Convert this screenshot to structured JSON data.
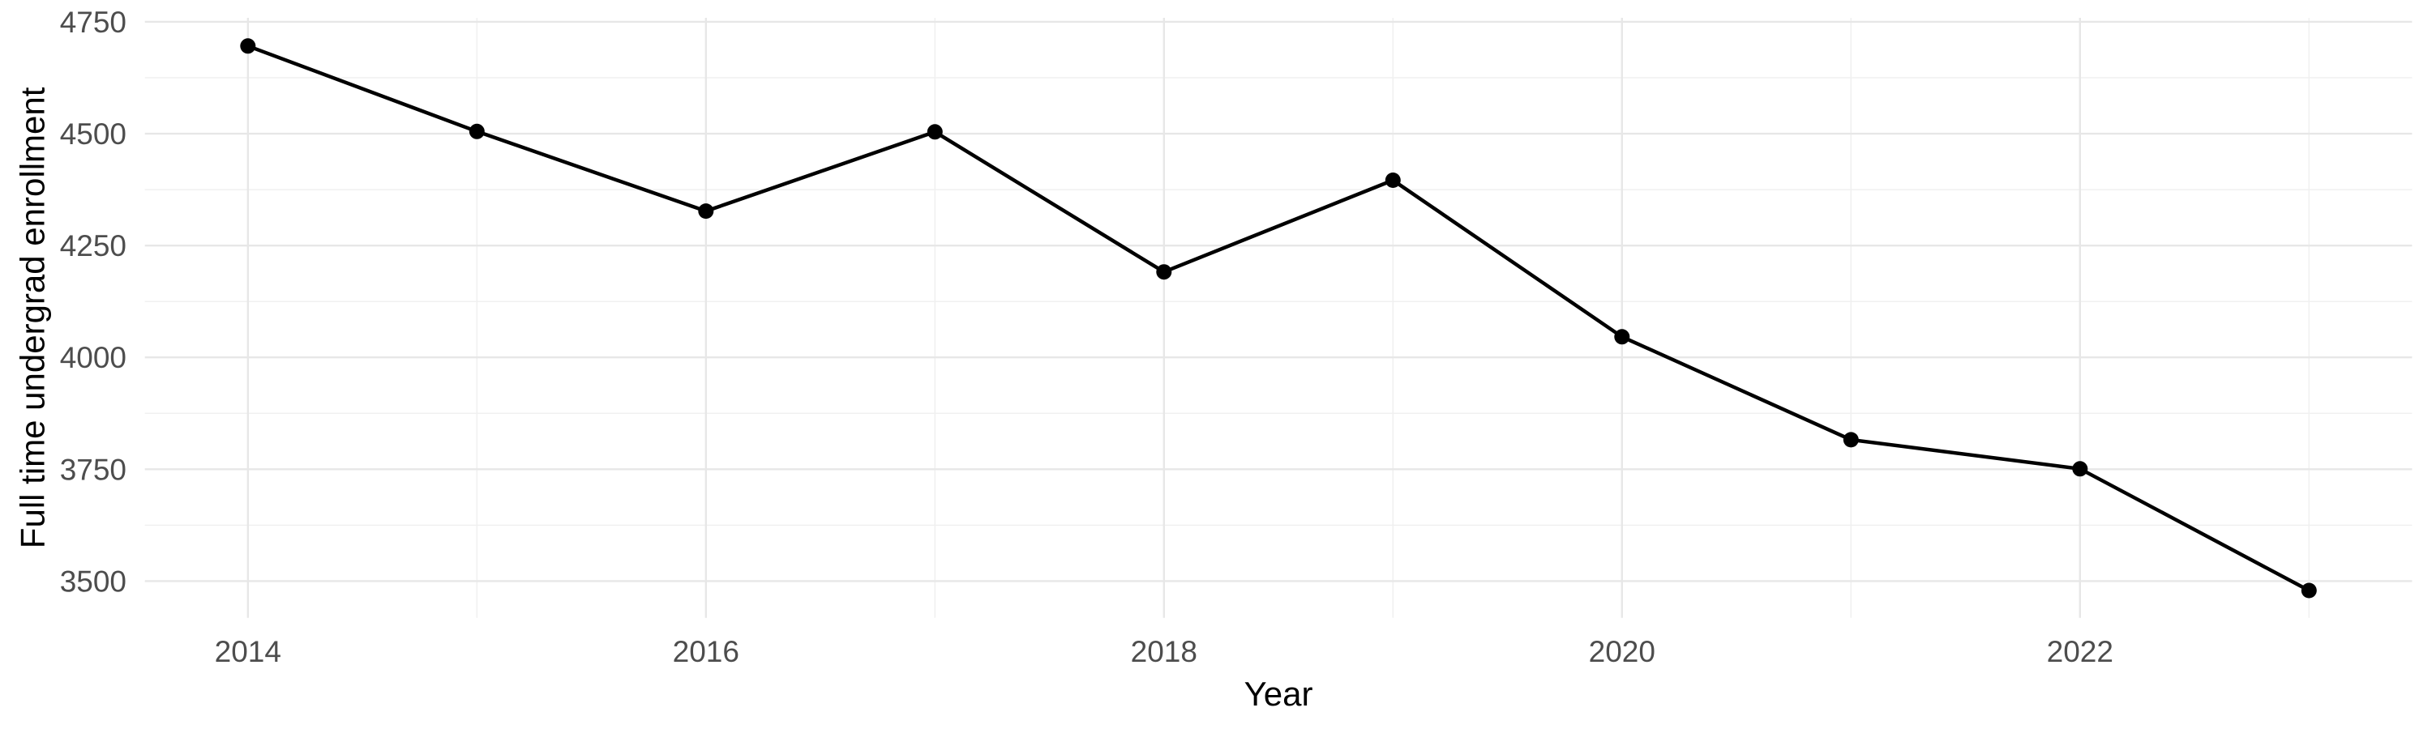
{
  "figure": {
    "background": "#FFFFFF"
  },
  "chart_data": {
    "type": "line",
    "title": "",
    "xlabel": "Year",
    "ylabel": "Full time undergrad enrollment",
    "x": [
      2014,
      2015,
      2016,
      2017,
      2018,
      2019,
      2020,
      2021,
      2022,
      2023
    ],
    "series": [
      {
        "name": "Full time undergrad enrollment",
        "color": "#000000",
        "values": [
          4696,
          4505,
          4327,
          4504,
          4191,
          4396,
          4046,
          3816,
          3751,
          3479
        ]
      }
    ],
    "xlim": [
      2013.55,
      2023.45
    ],
    "ylim": [
      3418,
      4759
    ],
    "x_ticks": {
      "major": [
        2014,
        2016,
        2018,
        2020,
        2022
      ],
      "minor": [
        2015,
        2017,
        2019,
        2021,
        2023
      ],
      "labels": [
        "2014",
        "2016",
        "2018",
        "2020",
        "2022"
      ]
    },
    "y_ticks": {
      "major": [
        3500,
        3750,
        4000,
        4250,
        4500,
        4750
      ],
      "minor": [
        3625,
        3875,
        4125,
        4375,
        4625
      ],
      "labels": [
        "3500",
        "3750",
        "4000",
        "4250",
        "4500",
        "4750"
      ]
    },
    "grid": {
      "show": true,
      "major_color": "#E7E7E7",
      "minor_color": "#F0F0F0"
    },
    "legend": {
      "show": false
    },
    "point_shape": "circle",
    "colors": {
      "line": "#000000",
      "point": "#000000",
      "axis_text": "#4D4D4D",
      "axis_title": "#000000",
      "background": "#FFFFFF"
    }
  }
}
